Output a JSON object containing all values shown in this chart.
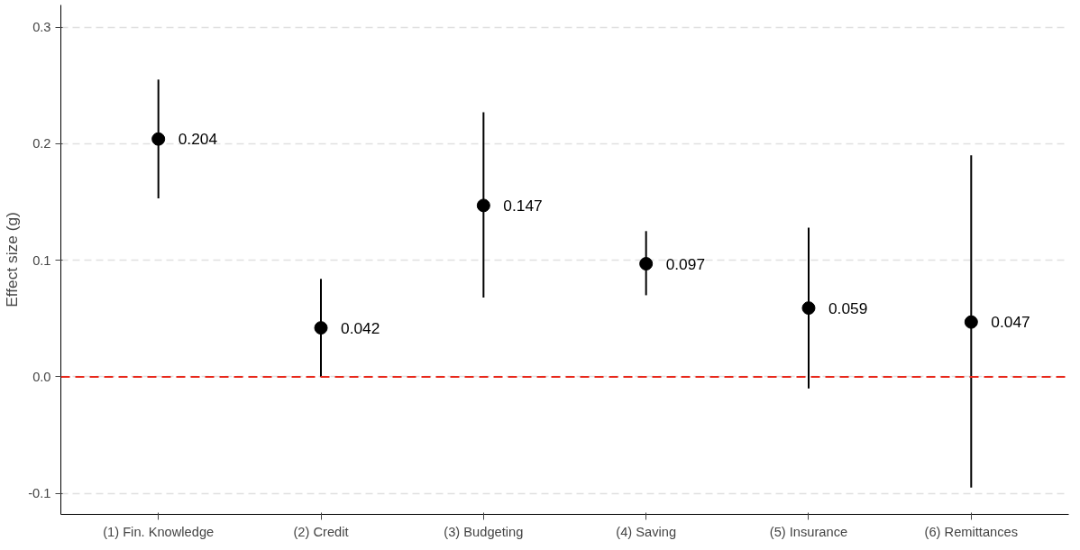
{
  "chart_data": {
    "type": "scatter",
    "ylabel": "Effect size (g)",
    "categories": [
      "(1) Fin. Knowledge",
      "(2) Credit",
      "(3) Budgeting",
      "(4) Saving",
      "(5) Insurance",
      "(6) Remittances"
    ],
    "values": [
      0.204,
      0.042,
      0.147,
      0.097,
      0.059,
      0.047
    ],
    "errors": [
      [
        0.153,
        0.255
      ],
      [
        0.0,
        0.084
      ],
      [
        0.068,
        0.227
      ],
      [
        0.07,
        0.125
      ],
      [
        -0.01,
        0.128
      ],
      [
        -0.095,
        0.19
      ]
    ],
    "color": "#000000",
    "marker": "circle",
    "data_labels": true,
    "ylim": [
      -0.118,
      0.319
    ],
    "yticks": [
      {
        "value": -0.1,
        "label": "-0.1"
      },
      {
        "value": 0.0,
        "label": "0.0"
      },
      {
        "value": 0.1,
        "label": "0.1"
      },
      {
        "value": 0.2,
        "label": "0.2"
      },
      {
        "value": 0.3,
        "label": "0.3"
      }
    ],
    "grid": "y",
    "ref_lines": [
      {
        "axis": "y",
        "value": 0.0,
        "color": "#e8291c",
        "line_style": "dashed"
      }
    ]
  }
}
